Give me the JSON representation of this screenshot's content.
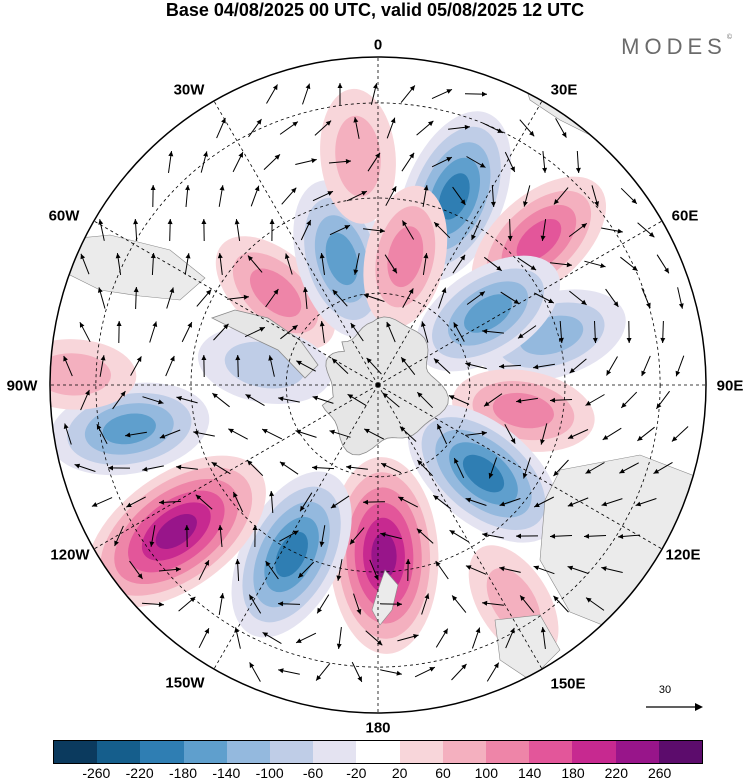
{
  "header": {
    "title": "Base 04/08/2025 00 UTC, valid 05/08/2025 12 UTC",
    "brand": "MODES",
    "brand_mark": "©"
  },
  "map": {
    "projection": "south-polar-stereographic",
    "longitude_labels": [
      "0",
      "30E",
      "60E",
      "90E",
      "120E",
      "150E",
      "180",
      "150W",
      "120W",
      "90W",
      "60W",
      "30W"
    ],
    "anomaly_centers": [
      {
        "lon": 22,
        "ring": 0.62,
        "value": -180,
        "type": "low"
      },
      {
        "lon": 48,
        "ring": 0.66,
        "value": 140,
        "type": "high"
      },
      {
        "lon": 74,
        "ring": 0.55,
        "value": -120,
        "type": "low"
      },
      {
        "lon": 57,
        "ring": 0.4,
        "value": -140,
        "type": "low"
      },
      {
        "lon": 100,
        "ring": 0.45,
        "value": 100,
        "type": "high"
      },
      {
        "lon": 130,
        "ring": 0.42,
        "value": -180,
        "type": "low"
      },
      {
        "lon": 178,
        "ring": 0.52,
        "value": 220,
        "type": "high"
      },
      {
        "lon": -153,
        "ring": 0.58,
        "value": -180,
        "type": "low"
      },
      {
        "lon": -126,
        "ring": 0.76,
        "value": 240,
        "type": "high"
      },
      {
        "lon": -100,
        "ring": 0.77,
        "value": -140,
        "type": "low"
      },
      {
        "lon": -48,
        "ring": 0.42,
        "value": 100,
        "type": "high"
      },
      {
        "lon": -16,
        "ring": 0.4,
        "value": -140,
        "type": "low"
      },
      {
        "lon": 12,
        "ring": 0.4,
        "value": 100,
        "type": "high"
      },
      {
        "lon": -80,
        "ring": 0.35,
        "value": -80,
        "type": "low"
      },
      {
        "lon": -5,
        "ring": 0.7,
        "value": 80,
        "type": "high"
      },
      {
        "lon": 148,
        "ring": 0.78,
        "value": 60,
        "type": "high"
      },
      {
        "lon": -88,
        "ring": 0.93,
        "value": 60,
        "type": "high"
      }
    ],
    "wind_reference": {
      "value": "30"
    }
  },
  "colorbar": {
    "colors": [
      "#0b3a5e",
      "#155e8c",
      "#2f7eb3",
      "#5f9fcd",
      "#94b9de",
      "#bfcde7",
      "#e4e3f1",
      "#ffffff",
      "#f8d6da",
      "#f4b0bf",
      "#ee85a8",
      "#e3569a",
      "#c72990",
      "#98158a",
      "#5c0c6c"
    ],
    "ticks": [
      "-260",
      "-220",
      "-180",
      "-140",
      "-100",
      "-60",
      "-20",
      "20",
      "60",
      "100",
      "140",
      "180",
      "220",
      "260"
    ]
  }
}
